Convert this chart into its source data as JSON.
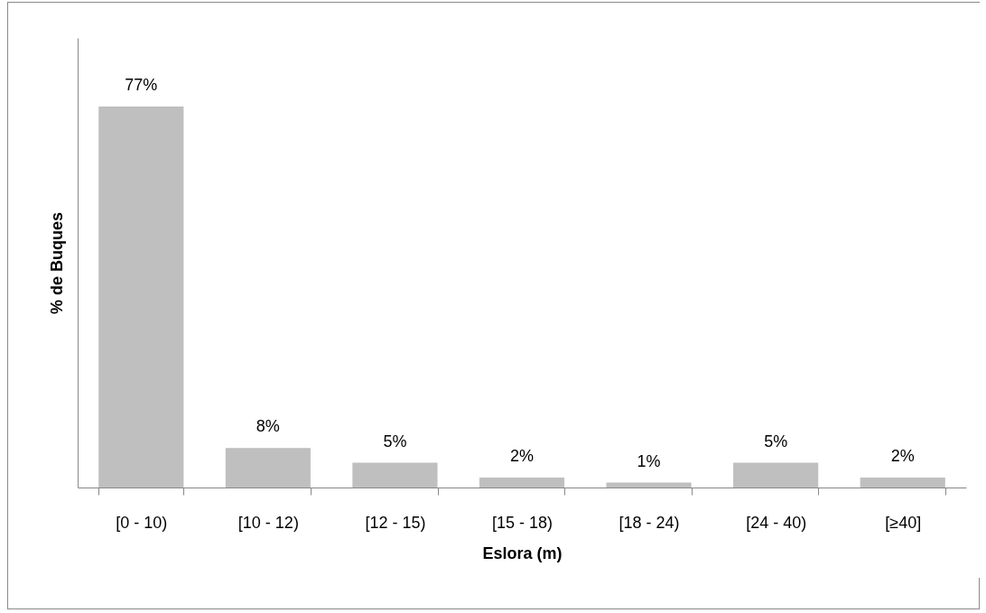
{
  "chart_data": {
    "type": "bar",
    "xlabel": "Eslora (m)",
    "ylabel": "% de Buques",
    "categories": [
      "[0 - 10)",
      "[10 - 12)",
      "[12 - 15)",
      "[15 - 18)",
      "[18 - 24)",
      "[24 - 40)",
      "[≥40]"
    ],
    "values": [
      77,
      8,
      5,
      2,
      1,
      5,
      2
    ],
    "color": "#bfbfbf",
    "data_labels": true,
    "value_labels": [
      "77%",
      "8%",
      "5%",
      "2%",
      "1%",
      "5%",
      "2%"
    ],
    "tick_labels": "x",
    "grid": false
  }
}
